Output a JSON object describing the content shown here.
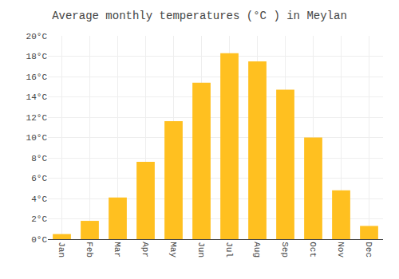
{
  "chart_data": {
    "type": "bar",
    "title": "Average monthly temperatures (°C ) in Meylan",
    "categories": [
      "Jan",
      "Feb",
      "Mar",
      "Apr",
      "May",
      "Jun",
      "Jul",
      "Aug",
      "Sep",
      "Oct",
      "Nov",
      "Dec"
    ],
    "values": [
      0.5,
      1.8,
      4.1,
      7.6,
      11.6,
      15.4,
      18.3,
      17.5,
      14.7,
      10.0,
      4.8,
      1.3
    ],
    "color": "#FFC020",
    "ylim": [
      0,
      20
    ],
    "yticks": [
      {
        "value": 0,
        "label": "0°C"
      },
      {
        "value": 2,
        "label": "2°C"
      },
      {
        "value": 4,
        "label": "4°C"
      },
      {
        "value": 6,
        "label": "6°C"
      },
      {
        "value": 8,
        "label": "8°C"
      },
      {
        "value": 10,
        "label": "10°C"
      },
      {
        "value": 12,
        "label": "12°C"
      },
      {
        "value": 14,
        "label": "14°C"
      },
      {
        "value": 16,
        "label": "16°C"
      },
      {
        "value": 18,
        "label": "18°C"
      },
      {
        "value": 20,
        "label": "20°C"
      }
    ],
    "grid": true
  }
}
